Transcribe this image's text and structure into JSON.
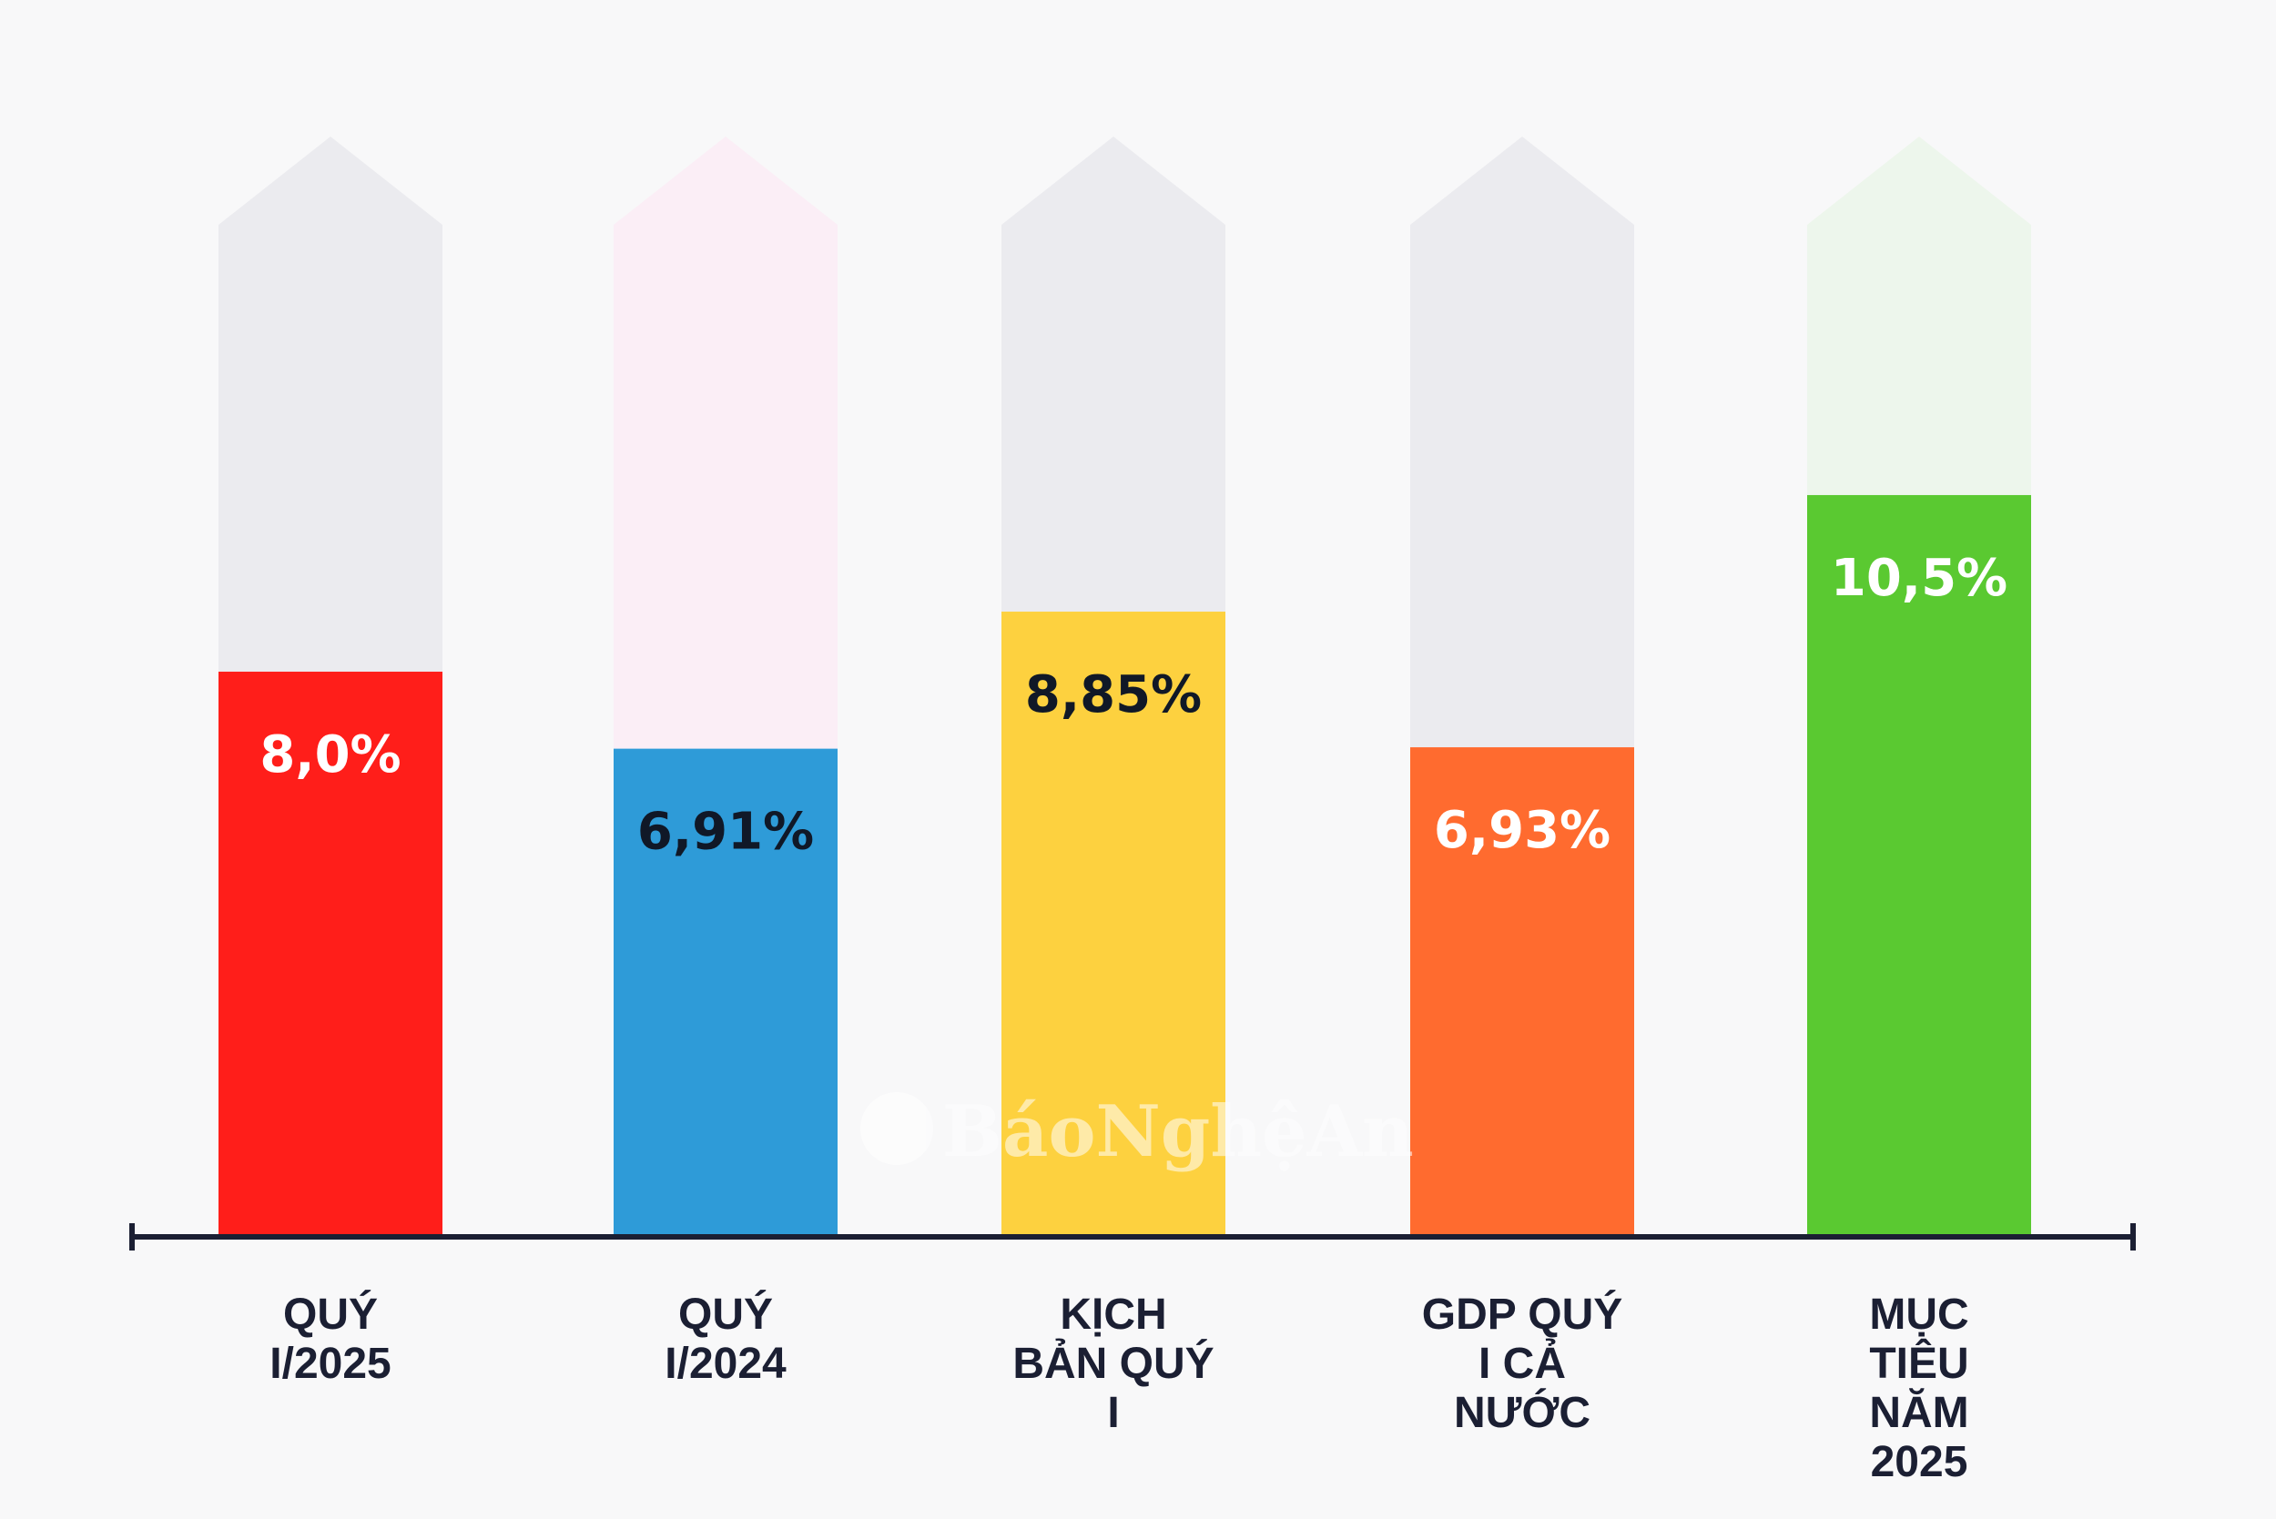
{
  "chart_data": {
    "type": "bar",
    "categories": [
      [
        "QUÝ",
        "I/2025"
      ],
      [
        "QUÝ",
        "I/2024"
      ],
      [
        "KỊCH",
        "BẢN QUÝ",
        "I"
      ],
      [
        "GDP QUÝ",
        "I CẢ",
        "NƯỚC"
      ],
      [
        "MỤC",
        "TIÊU",
        "NĂM",
        "2025"
      ]
    ],
    "values": [
      8.0,
      6.91,
      8.85,
      6.93,
      10.5
    ],
    "value_labels": [
      "8,0%",
      "6,91%",
      "8,85%",
      "6,93%",
      "10,5%"
    ],
    "bar_colors": [
      "#ff1e1a",
      "#2e9bd8",
      "#fdd13f",
      "#ff6b2f",
      "#5ac931"
    ],
    "track_colors": [
      "#ebebef",
      "#fbeef6",
      "#ebebef",
      "#ebebef",
      "#edf6ec"
    ],
    "label_colors": [
      "#ffffff",
      "#101827",
      "#101827",
      "#ffffff",
      "#ffffff"
    ],
    "ylim": [
      0,
      14.3
    ],
    "title": "",
    "xlabel": "",
    "ylabel": ""
  },
  "watermark": {
    "text": "BáoNghệAn"
  }
}
